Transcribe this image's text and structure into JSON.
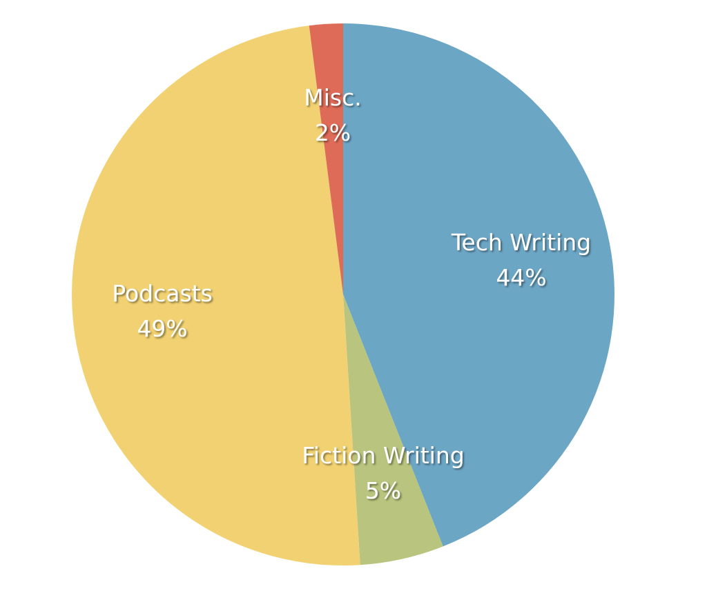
{
  "chart_data": {
    "type": "pie",
    "start": "12 o'clock",
    "direction": "clockwise",
    "slices": [
      {
        "label": "Tech Writing",
        "value": 44,
        "value_label": "44%",
        "color": "#6ca6c5"
      },
      {
        "label": "Fiction Writing",
        "value": 5,
        "value_label": "5%",
        "color": "#b9c57e"
      },
      {
        "label": "Podcasts",
        "value": 49,
        "value_label": "49%",
        "color": "#f1d171"
      },
      {
        "label": "Misc.",
        "value": 2,
        "value_label": "2%",
        "color": "#dd6b58"
      }
    ]
  }
}
